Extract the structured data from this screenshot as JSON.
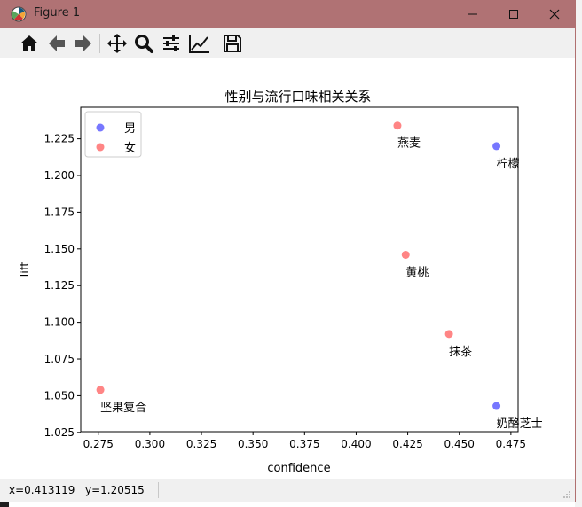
{
  "window": {
    "title": "Figure 1"
  },
  "toolbar": {
    "tools": [
      "home-icon",
      "back-icon",
      "forward-icon",
      "pan-icon",
      "zoom-icon",
      "configure-subplots-icon",
      "edit-axes-icon",
      "save-icon"
    ]
  },
  "status": {
    "x_readout": "x=0.413119",
    "y_readout": "y=1.20515"
  },
  "chart_data": {
    "type": "scatter",
    "title": "性别与流行口味相关关系",
    "xlabel": "confidence",
    "ylabel": "lift",
    "xlim": [
      0.2665,
      0.4785
    ],
    "ylim": [
      1.0255,
      1.2465
    ],
    "xticks": [
      "0.275",
      "0.300",
      "0.325",
      "0.350",
      "0.375",
      "0.400",
      "0.425",
      "0.450",
      "0.475"
    ],
    "xtick_values": [
      0.275,
      0.3,
      0.325,
      0.35,
      0.375,
      0.4,
      0.425,
      0.45,
      0.475
    ],
    "yticks": [
      "1.025",
      "1.050",
      "1.075",
      "1.100",
      "1.125",
      "1.150",
      "1.175",
      "1.200",
      "1.225"
    ],
    "ytick_values": [
      1.025,
      1.05,
      1.075,
      1.1,
      1.125,
      1.15,
      1.175,
      1.2,
      1.225
    ],
    "grid": false,
    "legend_position": "top-left",
    "series": [
      {
        "name": "男",
        "color": "#5555ff",
        "points": [
          {
            "x": 0.468,
            "y": 1.22,
            "label": "柠檬"
          },
          {
            "x": 0.468,
            "y": 1.043,
            "label": "奶酪芝士"
          }
        ]
      },
      {
        "name": "女",
        "color": "#ff6666",
        "points": [
          {
            "x": 0.42,
            "y": 1.234,
            "label": "燕麦"
          },
          {
            "x": 0.424,
            "y": 1.146,
            "label": "黄桃"
          },
          {
            "x": 0.445,
            "y": 1.092,
            "label": "抹茶"
          },
          {
            "x": 0.276,
            "y": 1.054,
            "label": "坚果复合"
          }
        ]
      }
    ]
  }
}
